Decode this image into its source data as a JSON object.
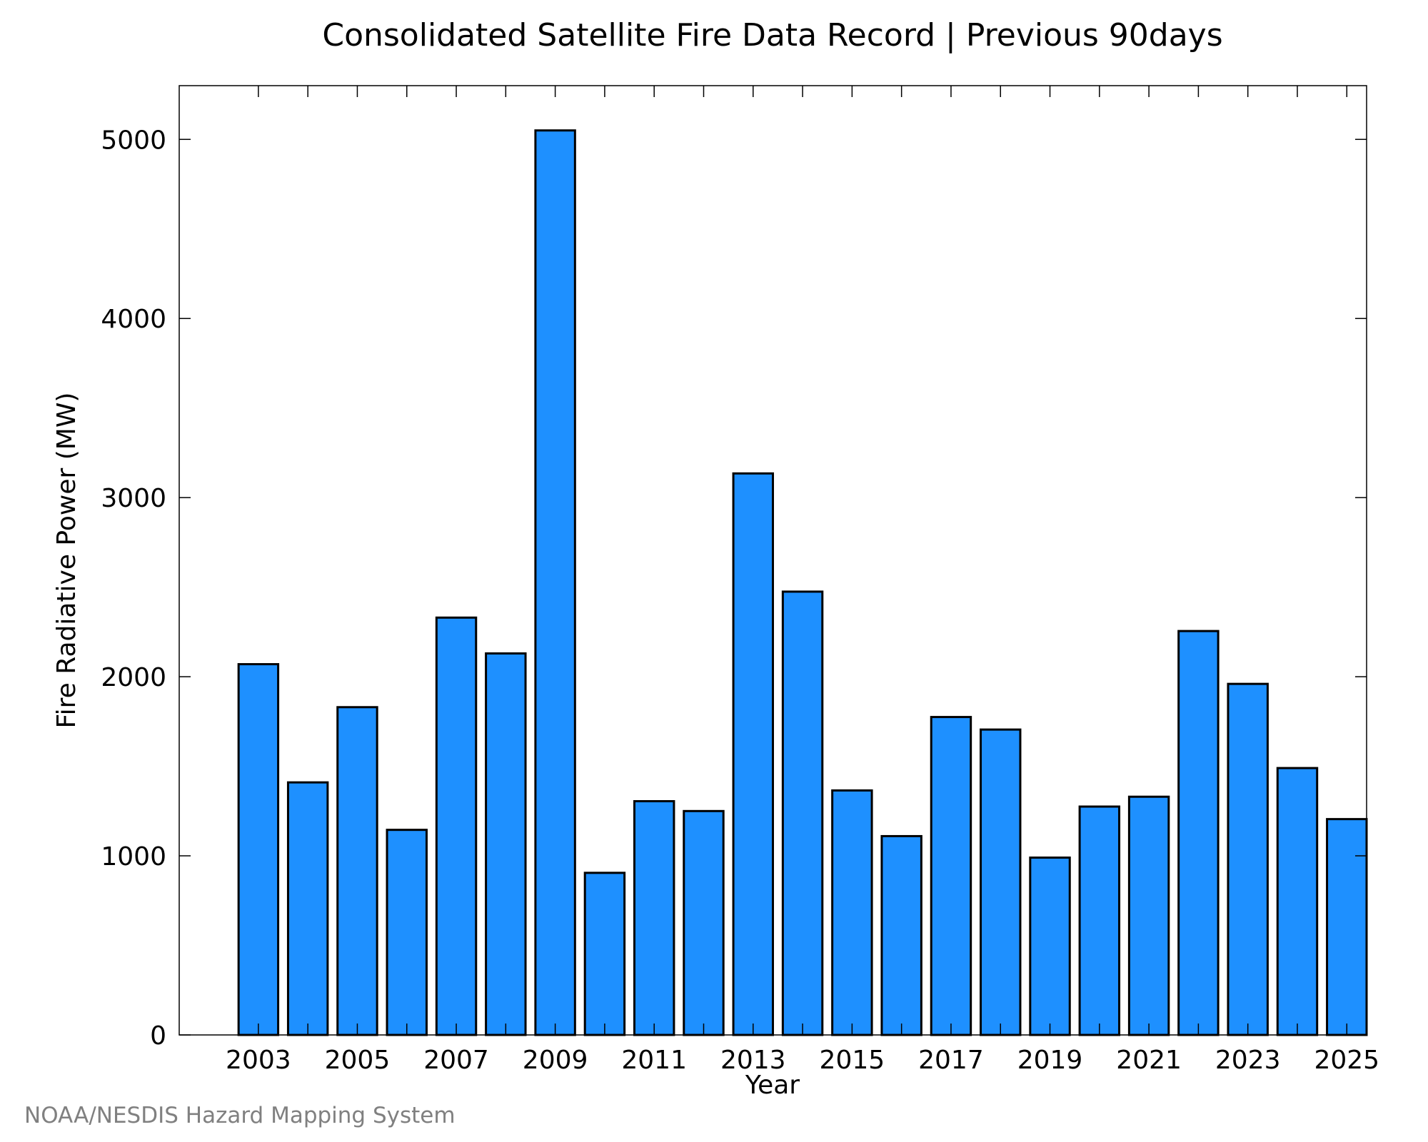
{
  "chart_data": {
    "type": "bar",
    "title": "Consolidated Satellite Fire Data Record | Previous 90days",
    "xlabel": "Year",
    "ylabel": "Fire Radiative Power (MW)",
    "credit": "NOAA/NESDIS Hazard Mapping System",
    "categories": [
      2003,
      2004,
      2005,
      2006,
      2007,
      2008,
      2009,
      2010,
      2011,
      2012,
      2013,
      2014,
      2015,
      2016,
      2017,
      2018,
      2019,
      2020,
      2021,
      2022,
      2023,
      2024,
      2025
    ],
    "values": [
      2070,
      1410,
      1830,
      1145,
      2330,
      2130,
      5050,
      905,
      1305,
      1250,
      3135,
      2475,
      1365,
      1110,
      1775,
      1705,
      990,
      1275,
      1330,
      2255,
      1960,
      1490,
      1205
    ],
    "x_tick_labels": [
      "2003",
      "2005",
      "2007",
      "2009",
      "2011",
      "2013",
      "2015",
      "2017",
      "2019",
      "2021",
      "2023",
      "2025"
    ],
    "y_ticks": [
      0,
      1000,
      2000,
      3000,
      4000,
      5000
    ],
    "ylim": [
      0,
      5300
    ],
    "xlim": [
      2001.4,
      2025.4
    ],
    "bar_width": 0.8,
    "bar_color": "#1e90ff",
    "bar_edge_color": "#000000",
    "grid": false,
    "legend": "none"
  }
}
